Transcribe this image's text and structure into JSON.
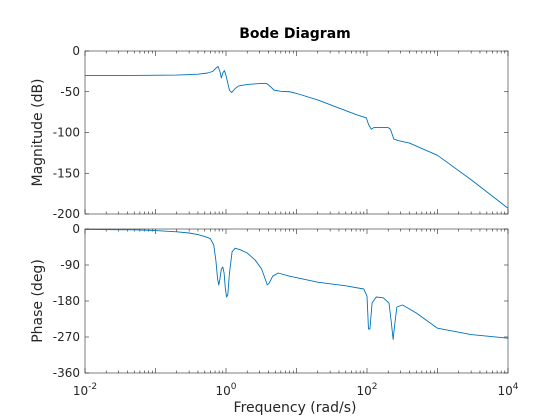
{
  "chart_data": {
    "type": "line",
    "title": "Bode Diagram",
    "xlabel": "Frequency  (rad/s)",
    "x_scale": "log",
    "xlim": [
      0.01,
      10000
    ],
    "x_ticks": [
      0.01,
      1,
      100,
      10000
    ],
    "x_tick_labels": [
      {
        "base": "10",
        "exp": "-2"
      },
      {
        "base": "10",
        "exp": "0"
      },
      {
        "base": "10",
        "exp": "2"
      },
      {
        "base": "10",
        "exp": "4"
      }
    ],
    "line_color": "#0072BD",
    "panels": [
      {
        "id": "magnitude",
        "ylabel": "Magnitude (dB)",
        "ylim": [
          -200,
          0
        ],
        "y_ticks": [
          0,
          -50,
          -100,
          -150,
          -200
        ],
        "y_tick_labels": [
          "0",
          "-50",
          "-100",
          "-150",
          "-200"
        ],
        "points": [
          [
            0.01,
            -30
          ],
          [
            0.05,
            -30
          ],
          [
            0.2,
            -29.5
          ],
          [
            0.4,
            -28.5
          ],
          [
            0.55,
            -27
          ],
          [
            0.65,
            -25
          ],
          [
            0.72,
            -21
          ],
          [
            0.77,
            -19
          ],
          [
            0.82,
            -25
          ],
          [
            0.86,
            -33
          ],
          [
            0.9,
            -27
          ],
          [
            0.95,
            -24
          ],
          [
            1.0,
            -30
          ],
          [
            1.05,
            -38
          ],
          [
            1.12,
            -48
          ],
          [
            1.2,
            -51
          ],
          [
            1.35,
            -46
          ],
          [
            1.5,
            -43
          ],
          [
            2.0,
            -41
          ],
          [
            3.0,
            -40
          ],
          [
            3.8,
            -40
          ],
          [
            4.3,
            -44
          ],
          [
            4.8,
            -48
          ],
          [
            6,
            -49.5
          ],
          [
            8,
            -50
          ],
          [
            10,
            -52
          ],
          [
            20,
            -60
          ],
          [
            40,
            -70
          ],
          [
            70,
            -78
          ],
          [
            90,
            -81
          ],
          [
            98,
            -82
          ],
          [
            105,
            -90
          ],
          [
            115,
            -96
          ],
          [
            125,
            -94
          ],
          [
            160,
            -94
          ],
          [
            200,
            -94
          ],
          [
            215,
            -96
          ],
          [
            240,
            -108
          ],
          [
            280,
            -110
          ],
          [
            400,
            -113
          ],
          [
            1000,
            -128
          ],
          [
            3000,
            -158
          ],
          [
            10000,
            -193
          ]
        ]
      },
      {
        "id": "phase",
        "ylabel": "Phase (deg)",
        "ylim": [
          -360,
          0
        ],
        "y_ticks": [
          0,
          -90,
          -180,
          -270,
          -360
        ],
        "y_tick_labels": [
          "0",
          "-90",
          "-180",
          "-270",
          "-360"
        ],
        "points": [
          [
            0.01,
            -1
          ],
          [
            0.05,
            -2
          ],
          [
            0.1,
            -4
          ],
          [
            0.2,
            -7
          ],
          [
            0.3,
            -10
          ],
          [
            0.4,
            -14
          ],
          [
            0.5,
            -19
          ],
          [
            0.6,
            -24
          ],
          [
            0.67,
            -40
          ],
          [
            0.72,
            -80
          ],
          [
            0.76,
            -125
          ],
          [
            0.79,
            -140
          ],
          [
            0.82,
            -125
          ],
          [
            0.86,
            -100
          ],
          [
            0.9,
            -95
          ],
          [
            0.94,
            -110
          ],
          [
            0.98,
            -150
          ],
          [
            1.02,
            -170
          ],
          [
            1.06,
            -165
          ],
          [
            1.12,
            -110
          ],
          [
            1.22,
            -57
          ],
          [
            1.35,
            -48
          ],
          [
            1.6,
            -52
          ],
          [
            2.0,
            -60
          ],
          [
            2.6,
            -78
          ],
          [
            3.2,
            -100
          ],
          [
            3.6,
            -125
          ],
          [
            3.85,
            -140
          ],
          [
            4.1,
            -135
          ],
          [
            4.6,
            -118
          ],
          [
            5.5,
            -110
          ],
          [
            8,
            -118
          ],
          [
            20,
            -133
          ],
          [
            50,
            -142
          ],
          [
            90,
            -150
          ],
          [
            100,
            -168
          ],
          [
            105,
            -250
          ],
          [
            110,
            -250
          ],
          [
            118,
            -185
          ],
          [
            135,
            -170
          ],
          [
            170,
            -172
          ],
          [
            205,
            -185
          ],
          [
            220,
            -230
          ],
          [
            235,
            -276
          ],
          [
            245,
            -245
          ],
          [
            265,
            -195
          ],
          [
            320,
            -190
          ],
          [
            500,
            -210
          ],
          [
            1000,
            -248
          ],
          [
            3000,
            -264
          ],
          [
            10000,
            -273
          ]
        ]
      }
    ]
  }
}
